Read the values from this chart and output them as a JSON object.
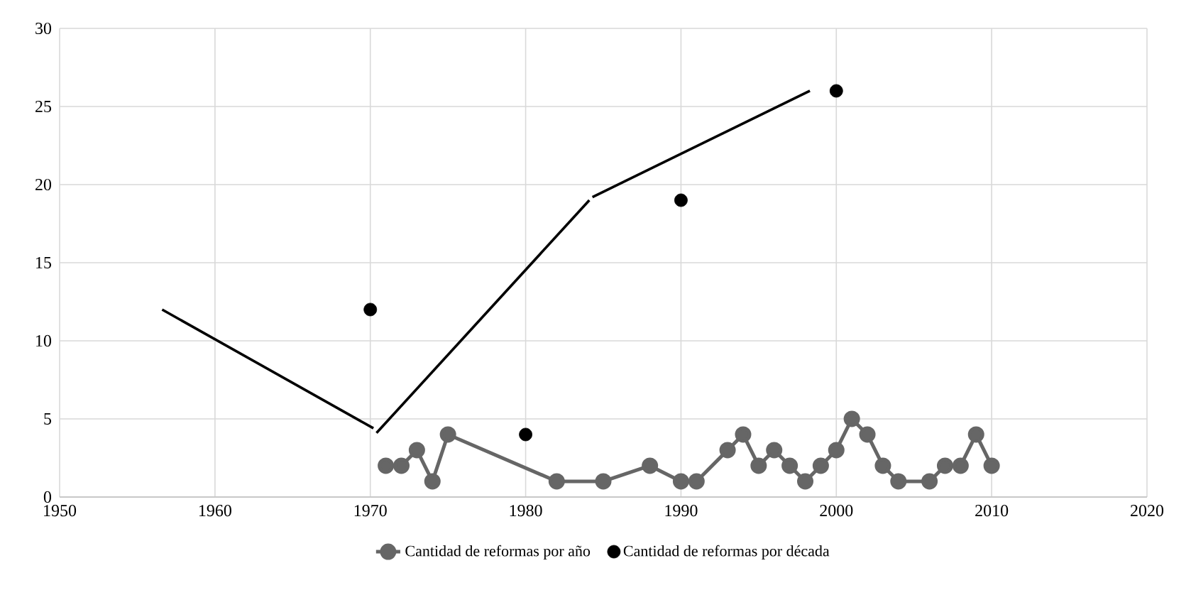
{
  "chart_data": {
    "type": "line",
    "xlim": [
      1950,
      2020
    ],
    "ylim": [
      0,
      30
    ],
    "xticks": [
      1950,
      1960,
      1970,
      1980,
      1990,
      2000,
      2010,
      2020
    ],
    "yticks": [
      0,
      5,
      10,
      15,
      20,
      25,
      30
    ],
    "grid": true,
    "legend": "bottom",
    "marker": "circle",
    "series": [
      {
        "name": "Cantidad de reformas por año",
        "color": "#666666",
        "x": [
          1971,
          1972,
          1973,
          1974,
          1975,
          1982,
          1985,
          1988,
          1990,
          1991,
          1993,
          1994,
          1995,
          1996,
          1997,
          1998,
          1999,
          2000,
          2001,
          2002,
          2003,
          2004,
          2006,
          2007,
          2008,
          2009,
          2010
        ],
        "values": [
          2,
          2,
          3,
          1,
          4,
          1,
          1,
          2,
          1,
          1,
          3,
          4,
          2,
          3,
          2,
          1,
          2,
          3,
          5,
          4,
          2,
          1,
          1,
          2,
          2,
          4,
          2
        ]
      },
      {
        "name": "Cantidad de reformas por década",
        "type": "scatter",
        "color": "#000000",
        "x": [
          1970,
          1980,
          1990,
          2000
        ],
        "values": [
          12,
          4,
          19,
          26
        ]
      },
      {
        "type": "line",
        "marker": "none",
        "color": "#000000",
        "x": [
          1956.6,
          1970.2
        ],
        "values": [
          12,
          4.4
        ]
      },
      {
        "type": "line",
        "marker": "none",
        "color": "#000000",
        "x": [
          1970.4,
          1984.1
        ],
        "values": [
          4.1,
          19
        ]
      },
      {
        "type": "line",
        "marker": "none",
        "color": "#000000",
        "x": [
          1984.3,
          1998.3
        ],
        "values": [
          19.2,
          26
        ]
      }
    ]
  }
}
